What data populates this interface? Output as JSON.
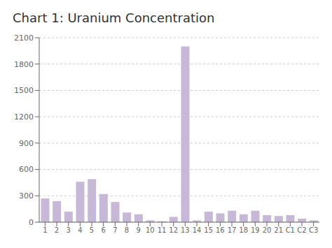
{
  "chart_data": {
    "type": "bar",
    "title": "Chart 1: Uranium Concentration",
    "categories": [
      "1",
      "2",
      "3",
      "4",
      "5",
      "6",
      "7",
      "8",
      "9",
      "10",
      "11",
      "12",
      "13",
      "14",
      "15",
      "16",
      "17",
      "18",
      "19",
      "20",
      "21",
      "C1",
      "C2",
      "C3"
    ],
    "values": [
      270,
      240,
      120,
      460,
      490,
      320,
      230,
      110,
      90,
      20,
      10,
      60,
      2000,
      20,
      120,
      100,
      130,
      90,
      130,
      80,
      70,
      80,
      40,
      20
    ],
    "color": "#c8b8d8",
    "ylim": [
      0,
      2100
    ],
    "yticks": [
      0,
      300,
      600,
      900,
      1200,
      1500,
      1800,
      2100
    ],
    "grid": true
  }
}
